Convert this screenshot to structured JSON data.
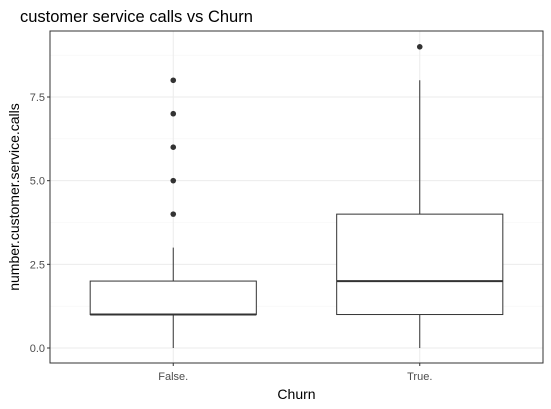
{
  "chart_data": {
    "type": "boxplot",
    "title": "customer service calls vs Churn",
    "xlabel": "Churn",
    "ylabel": "number.customer.service.calls",
    "categories": [
      "False.",
      "True."
    ],
    "ylim": [
      0,
      9.4
    ],
    "yticks": [
      0,
      2.5,
      5,
      7.5
    ],
    "ytick_labels": [
      "0.0",
      "2.5",
      "5.0",
      "7.5"
    ],
    "grid": true,
    "colors": {
      "background": "#ffffff",
      "panel_border": "#333333",
      "grid_major": "#ebebeb",
      "grid_minor": "#f5f5f5",
      "box_line": "#333333",
      "outlier": "#333333"
    },
    "boxes": [
      {
        "category": "False.",
        "min": 0,
        "q1": 1,
        "median": 1,
        "q3": 2,
        "max": 3,
        "outliers": [
          4,
          5,
          6,
          7,
          8
        ]
      },
      {
        "category": "True.",
        "min": 0,
        "q1": 1,
        "median": 2,
        "q3": 4,
        "max": 8,
        "outliers": [
          9
        ]
      }
    ]
  }
}
